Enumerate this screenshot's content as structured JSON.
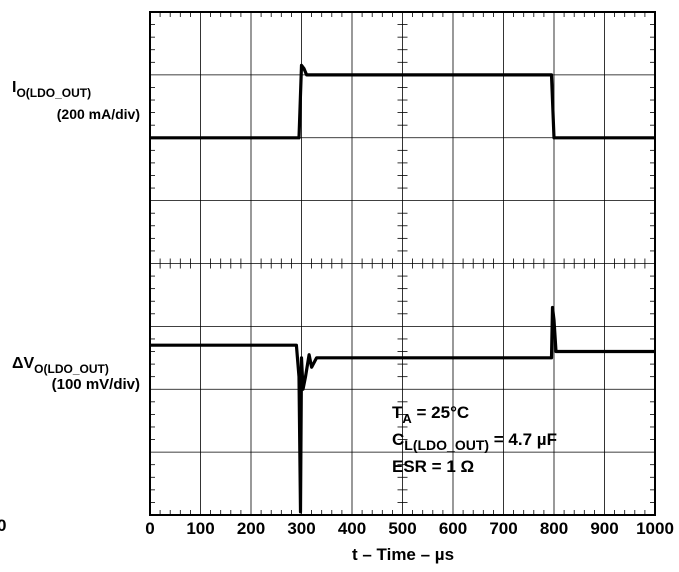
{
  "chart_data": {
    "type": "line",
    "title": "",
    "xlabel": "t – Time – µs",
    "xlim": [
      0,
      1000
    ],
    "x_ticks": [
      "0",
      "100",
      "200",
      "300",
      "400",
      "500",
      "600",
      "700",
      "800",
      "900",
      "1000"
    ],
    "grid": true,
    "y_divisions": 8,
    "stray_label": "0",
    "series": [
      {
        "name": "I_O(LDO_OUT)",
        "label_main": "I",
        "label_sub": "O(LDO_OUT)",
        "scale": "(200 mA/div)",
        "units": "div",
        "x": [
          0,
          295,
          300,
          305,
          310,
          315,
          320,
          795,
          800,
          805,
          1000
        ],
        "y": [
          6.0,
          6.0,
          7.15,
          7.1,
          7.0,
          7.0,
          7.0,
          7.0,
          6.0,
          6.0,
          6.0
        ]
      },
      {
        "name": "ΔV_O(LDO_OUT)",
        "label_main": "ΔV",
        "label_sub": "O(LDO_OUT)",
        "scale": "(100 mV/div)",
        "units": "div",
        "x": [
          0,
          290,
          295,
          298,
          300,
          303,
          308,
          315,
          320,
          330,
          795,
          797,
          800,
          804,
          808,
          1000
        ],
        "y": [
          2.7,
          2.7,
          2.2,
          0.05,
          2.5,
          2.0,
          2.2,
          2.55,
          2.35,
          2.5,
          2.5,
          3.3,
          3.1,
          2.6,
          2.6,
          2.6
        ]
      }
    ],
    "annotation": {
      "line1_main": "T",
      "line1_sub": "A",
      "line1_rest": " = 25°C",
      "line2_main": "C",
      "line2_sub": "L(LDO_OUT)",
      "line2_rest": " = 4.7 µF",
      "line3": "ESR = 1 Ω"
    }
  }
}
